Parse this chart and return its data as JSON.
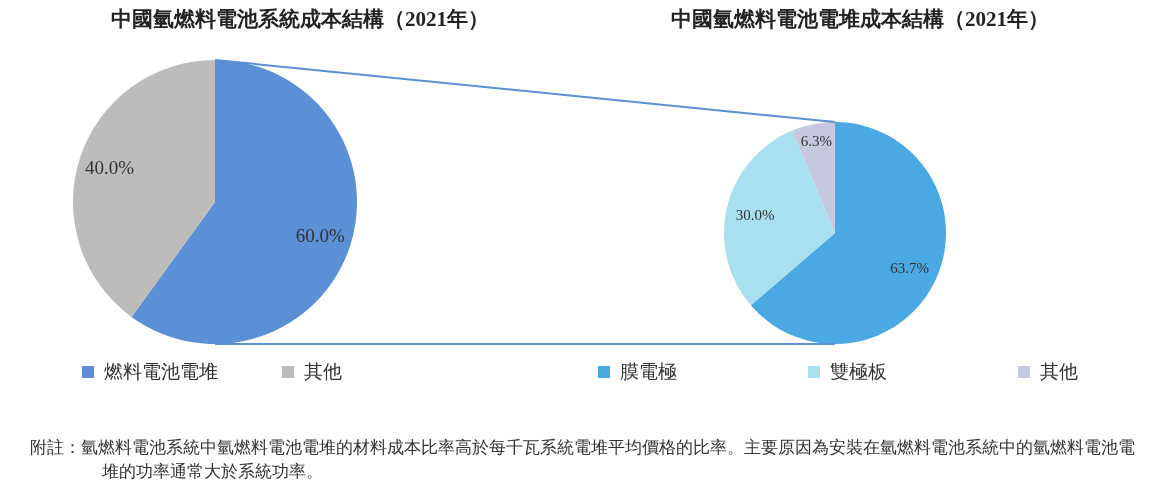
{
  "chart_data": [
    {
      "type": "pie",
      "title": "中國氫燃料電池系統成本結構（2021年）",
      "categories": [
        "燃料電池電堆",
        "其他"
      ],
      "values": [
        60.0,
        40.0
      ],
      "colors": [
        "#5b8fd6",
        "#bdbcbb"
      ],
      "value_labels": [
        "60.0%",
        "40.0%"
      ],
      "legend": "bottom",
      "annotations": [
        "附註：氫燃料電池系統中氫燃料電池電堆的材料成本比率高於每千瓦系統電堆平均價格的比率。主要原因為安裝在氫燃料電池系統中的氫燃料電池電堆的功率通常大於系統功率。"
      ]
    },
    {
      "type": "pie",
      "title": "中國氫燃料電池電堆成本結構（2021年）",
      "categories": [
        "膜電極",
        "雙極板",
        "其他"
      ],
      "values": [
        63.7,
        30.0,
        6.3
      ],
      "colors": [
        "#4aa9e2",
        "#a8e0f0",
        "#c5c9e0"
      ],
      "value_labels": [
        "63.7%",
        "30.0%",
        "6.3%"
      ],
      "legend": "bottom"
    }
  ]
}
